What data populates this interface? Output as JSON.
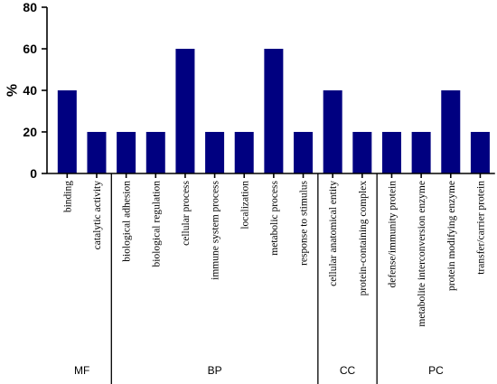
{
  "chart_data": {
    "type": "bar",
    "ylabel": "%",
    "ylim": [
      0,
      80
    ],
    "yticks": [
      0,
      20,
      40,
      60,
      80
    ],
    "bar_color": "#000080",
    "categories": [
      "binding",
      "catalytic activity",
      "biological adhesion",
      "biological regulation",
      "cellular process",
      "immune system process",
      "localization",
      "metabolic process",
      "response to stimulus",
      "cellular anatomical entity",
      "protein-containing complex",
      "defense/immunity protein",
      "metabolite interconversion enzyme",
      "protein modifying enzyme",
      "transfer/carrier protein"
    ],
    "values": [
      40,
      20,
      20,
      20,
      60,
      20,
      20,
      60,
      20,
      40,
      20,
      20,
      20,
      40,
      20
    ],
    "groups": [
      {
        "name": "MF",
        "count": 2
      },
      {
        "name": "BP",
        "count": 7
      },
      {
        "name": "CC",
        "count": 2
      },
      {
        "name": "PC",
        "count": 4
      }
    ]
  }
}
